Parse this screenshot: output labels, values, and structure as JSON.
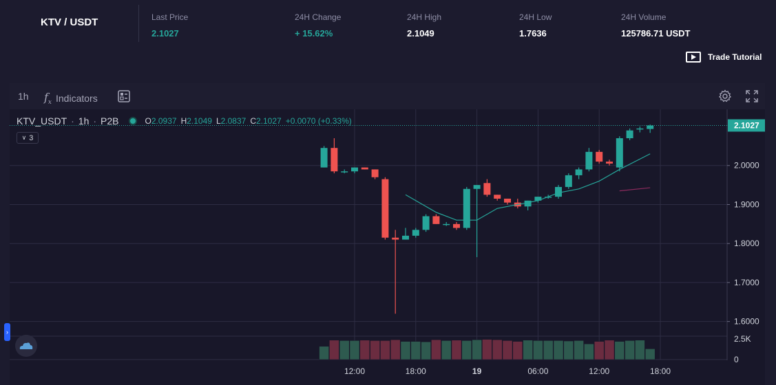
{
  "header": {
    "pair": "KTV / USDT",
    "stats": [
      {
        "label": "Last Price",
        "value": "2.1027",
        "color": "green"
      },
      {
        "label": "24H Change",
        "value": "+ 15.62%",
        "color": "green"
      },
      {
        "label": "24H High",
        "value": "2.1049",
        "color": "white"
      },
      {
        "label": "24H Low",
        "value": "1.7636",
        "color": "white"
      },
      {
        "label": "24H Volume",
        "value": "125786.71 USDT",
        "color": "white"
      }
    ],
    "tutorial_label": "Trade Tutorial"
  },
  "toolbar": {
    "interval": "1h",
    "indicators_label": "Indicators",
    "fx_glyph": "f"
  },
  "legend": {
    "symbol": "KTV_USDT",
    "interval": "1h",
    "exchange": "P2B",
    "o_label": "O",
    "o": "2.0937",
    "h_label": "H",
    "h": "2.1049",
    "l_label": "L",
    "l": "2.0837",
    "c_label": "C",
    "c": "2.1027",
    "change": "+0.0070 (+0.33%)",
    "collapse_count": "3"
  },
  "colors": {
    "up": "#26a69a",
    "down": "#ef5350",
    "price_tag": "#26a69a",
    "ma_short": "#26a69a",
    "ma_long": "#8e2b5e"
  },
  "chart_data": {
    "type": "candlestick",
    "price_label": "2.1027",
    "ylim": [
      1.58,
      2.13
    ],
    "y_ticks": [
      "2.1027",
      "2.0000",
      "1.9000",
      "1.8000",
      "1.7000",
      "1.6000"
    ],
    "y_tick_values": [
      2.1027,
      2.0,
      1.9,
      1.8,
      1.7,
      1.6
    ],
    "volume_ticks": [
      "2.5K",
      "0"
    ],
    "volume_tick_values": [
      2500,
      0
    ],
    "volume_max": 3000,
    "x_ticks": [
      "12:00",
      "18:00",
      "19",
      "06:00",
      "12:00",
      "18:00"
    ],
    "x_tick_hours": [
      14,
      20,
      26,
      32,
      38,
      44
    ],
    "candles": [
      {
        "t": 11,
        "o": 1.995,
        "h": 2.05,
        "l": 1.995,
        "c": 2.045,
        "v": 1600
      },
      {
        "t": 12,
        "o": 2.045,
        "h": 2.07,
        "l": 1.98,
        "c": 1.985,
        "v": 2350
      },
      {
        "t": 13,
        "o": 1.985,
        "h": 1.99,
        "l": 1.98,
        "c": 1.985,
        "v": 2300
      },
      {
        "t": 14,
        "o": 1.985,
        "h": 1.995,
        "l": 1.98,
        "c": 1.995,
        "v": 2300
      },
      {
        "t": 15,
        "o": 1.995,
        "h": 1.995,
        "l": 1.99,
        "c": 1.99,
        "v": 2350
      },
      {
        "t": 16,
        "o": 1.99,
        "h": 1.99,
        "l": 1.965,
        "c": 1.97,
        "v": 2300
      },
      {
        "t": 17,
        "o": 1.965,
        "h": 1.97,
        "l": 1.81,
        "c": 1.815,
        "v": 2300
      },
      {
        "t": 18,
        "o": 1.815,
        "h": 1.835,
        "l": 1.62,
        "c": 1.81,
        "v": 2400
      },
      {
        "t": 19,
        "o": 1.81,
        "h": 1.84,
        "l": 1.81,
        "c": 1.82,
        "v": 2200
      },
      {
        "t": 20,
        "o": 1.82,
        "h": 1.84,
        "l": 1.815,
        "c": 1.835,
        "v": 2200
      },
      {
        "t": 21,
        "o": 1.835,
        "h": 1.875,
        "l": 1.83,
        "c": 1.87,
        "v": 2150
      },
      {
        "t": 22,
        "o": 1.87,
        "h": 1.875,
        "l": 1.85,
        "c": 1.85,
        "v": 2400
      },
      {
        "t": 23,
        "o": 1.85,
        "h": 1.855,
        "l": 1.845,
        "c": 1.85,
        "v": 2300
      },
      {
        "t": 24,
        "o": 1.85,
        "h": 1.855,
        "l": 1.835,
        "c": 1.84,
        "v": 2350
      },
      {
        "t": 25,
        "o": 1.84,
        "h": 1.945,
        "l": 1.835,
        "c": 1.94,
        "v": 2300
      },
      {
        "t": 26,
        "o": 1.94,
        "h": 1.95,
        "l": 1.765,
        "c": 1.95,
        "v": 2400
      },
      {
        "t": 27,
        "o": 1.955,
        "h": 1.965,
        "l": 1.92,
        "c": 1.925,
        "v": 2450
      },
      {
        "t": 28,
        "o": 1.925,
        "h": 1.925,
        "l": 1.91,
        "c": 1.915,
        "v": 2400
      },
      {
        "t": 29,
        "o": 1.915,
        "h": 1.915,
        "l": 1.9,
        "c": 1.905,
        "v": 2300
      },
      {
        "t": 30,
        "o": 1.905,
        "h": 1.915,
        "l": 1.89,
        "c": 1.895,
        "v": 2200
      },
      {
        "t": 31,
        "o": 1.895,
        "h": 1.91,
        "l": 1.885,
        "c": 1.91,
        "v": 2350
      },
      {
        "t": 32,
        "o": 1.91,
        "h": 1.92,
        "l": 1.905,
        "c": 1.92,
        "v": 2300
      },
      {
        "t": 33,
        "o": 1.92,
        "h": 1.925,
        "l": 1.915,
        "c": 1.92,
        "v": 2300
      },
      {
        "t": 34,
        "o": 1.92,
        "h": 1.95,
        "l": 1.915,
        "c": 1.945,
        "v": 2300
      },
      {
        "t": 35,
        "o": 1.945,
        "h": 1.98,
        "l": 1.94,
        "c": 1.975,
        "v": 2250
      },
      {
        "t": 36,
        "o": 1.975,
        "h": 1.995,
        "l": 1.965,
        "c": 1.99,
        "v": 2300
      },
      {
        "t": 37,
        "o": 1.99,
        "h": 2.045,
        "l": 1.985,
        "c": 2.035,
        "v": 1900
      },
      {
        "t": 38,
        "o": 2.035,
        "h": 2.04,
        "l": 2.005,
        "c": 2.01,
        "v": 2200
      },
      {
        "t": 39,
        "o": 2.01,
        "h": 2.015,
        "l": 2.0,
        "c": 2.005,
        "v": 2350
      },
      {
        "t": 40,
        "o": 1.995,
        "h": 2.075,
        "l": 1.985,
        "c": 2.07,
        "v": 2200
      },
      {
        "t": 41,
        "o": 2.07,
        "h": 2.095,
        "l": 2.065,
        "c": 2.09,
        "v": 2300
      },
      {
        "t": 42,
        "o": 2.095,
        "h": 2.1,
        "l": 2.085,
        "c": 2.095,
        "v": 2350
      },
      {
        "t": 43,
        "o": 2.0937,
        "h": 2.1049,
        "l": 2.0837,
        "c": 2.1027,
        "v": 1300
      }
    ],
    "ma_short": [
      [
        19,
        1.925
      ],
      [
        22,
        1.88
      ],
      [
        24,
        1.86
      ],
      [
        26,
        1.86
      ],
      [
        28,
        1.89
      ],
      [
        30,
        1.9
      ],
      [
        32,
        1.91
      ],
      [
        34,
        1.93
      ],
      [
        36,
        1.94
      ],
      [
        38,
        1.96
      ],
      [
        40,
        1.99
      ],
      [
        43,
        2.03
      ]
    ],
    "ma_long": [
      [
        40,
        1.935
      ],
      [
        43,
        1.943
      ]
    ]
  }
}
